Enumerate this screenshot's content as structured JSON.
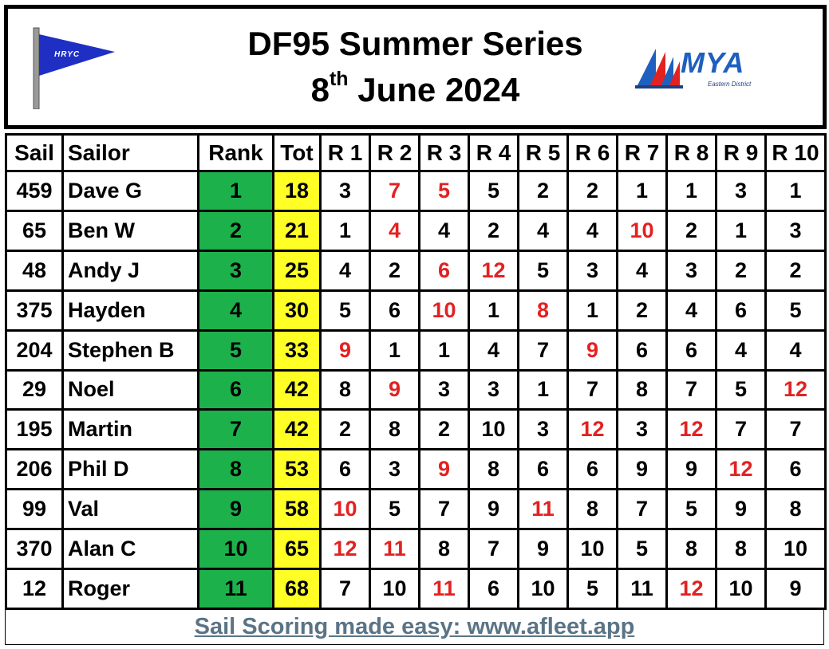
{
  "header": {
    "title_line1": "DF95 Summer Series",
    "title_line2_pre": "8",
    "title_line2_sup": "th",
    "title_line2_post": " June 2024",
    "left_logo": {
      "icon": "hryc-flag-icon",
      "text": "HRYC"
    },
    "right_logo": {
      "icon": "mya-sails-icon",
      "text": "MYA",
      "subtext": "Eastern District"
    }
  },
  "table": {
    "columns": [
      "Sail",
      "Sailor",
      "Rank",
      "Tot",
      "R 1",
      "R 2",
      "R 3",
      "R 4",
      "R 5",
      "R 6",
      "R 7",
      "R 8",
      "R 9",
      "R 10"
    ],
    "rows": [
      {
        "sail": "459",
        "sailor": "Dave G",
        "rank": "1",
        "tot": "18",
        "races": [
          "3",
          "7",
          "5",
          "5",
          "2",
          "2",
          "1",
          "1",
          "3",
          "1"
        ],
        "discards": [
          1,
          2
        ]
      },
      {
        "sail": "65",
        "sailor": "Ben W",
        "rank": "2",
        "tot": "21",
        "races": [
          "1",
          "4",
          "4",
          "2",
          "4",
          "4",
          "10",
          "2",
          "1",
          "3"
        ],
        "discards": [
          1,
          6
        ]
      },
      {
        "sail": "48",
        "sailor": "Andy J",
        "rank": "3",
        "tot": "25",
        "races": [
          "4",
          "2",
          "6",
          "12",
          "5",
          "3",
          "4",
          "3",
          "2",
          "2"
        ],
        "discards": [
          2,
          3
        ]
      },
      {
        "sail": "375",
        "sailor": "Hayden",
        "rank": "4",
        "tot": "30",
        "races": [
          "5",
          "6",
          "10",
          "1",
          "8",
          "1",
          "2",
          "4",
          "6",
          "5"
        ],
        "discards": [
          2,
          4
        ]
      },
      {
        "sail": "204",
        "sailor": "Stephen B",
        "rank": "5",
        "tot": "33",
        "races": [
          "9",
          "1",
          "1",
          "4",
          "7",
          "9",
          "6",
          "6",
          "4",
          "4"
        ],
        "discards": [
          0,
          5
        ]
      },
      {
        "sail": "29",
        "sailor": "Noel",
        "rank": "6",
        "tot": "42",
        "races": [
          "8",
          "9",
          "3",
          "3",
          "1",
          "7",
          "8",
          "7",
          "5",
          "12"
        ],
        "discards": [
          1,
          9
        ]
      },
      {
        "sail": "195",
        "sailor": "Martin",
        "rank": "7",
        "tot": "42",
        "races": [
          "2",
          "8",
          "2",
          "10",
          "3",
          "12",
          "3",
          "12",
          "7",
          "7"
        ],
        "discards": [
          5,
          7
        ]
      },
      {
        "sail": "206",
        "sailor": "Phil D",
        "rank": "8",
        "tot": "53",
        "races": [
          "6",
          "3",
          "9",
          "8",
          "6",
          "6",
          "9",
          "9",
          "12",
          "6"
        ],
        "discards": [
          2,
          8
        ]
      },
      {
        "sail": "99",
        "sailor": "Val",
        "rank": "9",
        "tot": "58",
        "races": [
          "10",
          "5",
          "7",
          "9",
          "11",
          "8",
          "7",
          "5",
          "9",
          "8"
        ],
        "discards": [
          0,
          4
        ]
      },
      {
        "sail": "370",
        "sailor": "Alan C",
        "rank": "10",
        "tot": "65",
        "races": [
          "12",
          "11",
          "8",
          "7",
          "9",
          "10",
          "5",
          "8",
          "8",
          "10"
        ],
        "discards": [
          0,
          1
        ]
      },
      {
        "sail": "12",
        "sailor": "Roger",
        "rank": "11",
        "tot": "68",
        "races": [
          "7",
          "10",
          "11",
          "6",
          "10",
          "5",
          "11",
          "12",
          "10",
          "9"
        ],
        "discards": [
          2,
          7
        ]
      }
    ]
  },
  "footer": {
    "text": "Sail Scoring made easy: www.afleet.app"
  },
  "colors": {
    "rank_bg": "#1db14b",
    "tot_bg": "#ffff26",
    "discard": "#e32121",
    "footer_link": "#5a7486",
    "hryc_flag": "#1f2fc4",
    "mya_blue": "#1f5fbf",
    "mya_red": "#e32121"
  }
}
